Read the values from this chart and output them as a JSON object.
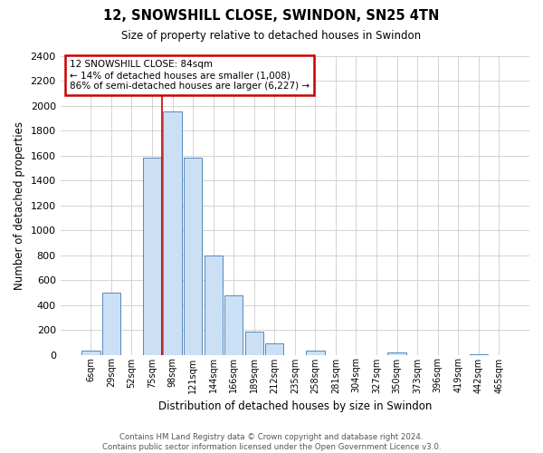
{
  "title": "12, SNOWSHILL CLOSE, SWINDON, SN25 4TN",
  "subtitle": "Size of property relative to detached houses in Swindon",
  "xlabel": "Distribution of detached houses by size in Swindon",
  "ylabel": "Number of detached properties",
  "bar_labels": [
    "6sqm",
    "29sqm",
    "52sqm",
    "75sqm",
    "98sqm",
    "121sqm",
    "144sqm",
    "166sqm",
    "189sqm",
    "212sqm",
    "235sqm",
    "258sqm",
    "281sqm",
    "304sqm",
    "327sqm",
    "350sqm",
    "373sqm",
    "396sqm",
    "419sqm",
    "442sqm",
    "465sqm"
  ],
  "bar_values": [
    35,
    500,
    0,
    1580,
    1950,
    1580,
    800,
    480,
    185,
    90,
    0,
    30,
    0,
    0,
    0,
    18,
    0,
    0,
    0,
    5,
    0
  ],
  "bar_color": "#cce0f5",
  "bar_edge_color": "#5588bb",
  "vline_x": 3.5,
  "vline_color": "#cc0000",
  "annotation_title": "12 SNOWSHILL CLOSE: 84sqm",
  "annotation_line1": "← 14% of detached houses are smaller (1,008)",
  "annotation_line2": "86% of semi-detached houses are larger (6,227) →",
  "annotation_box_color": "#ffffff",
  "annotation_box_edge_color": "#cc0000",
  "ylim": [
    0,
    2400
  ],
  "yticks": [
    0,
    200,
    400,
    600,
    800,
    1000,
    1200,
    1400,
    1600,
    1800,
    2000,
    2200,
    2400
  ],
  "footer_line1": "Contains HM Land Registry data © Crown copyright and database right 2024.",
  "footer_line2": "Contains public sector information licensed under the Open Government Licence v3.0.",
  "background_color": "#ffffff",
  "grid_color": "#cccccc"
}
